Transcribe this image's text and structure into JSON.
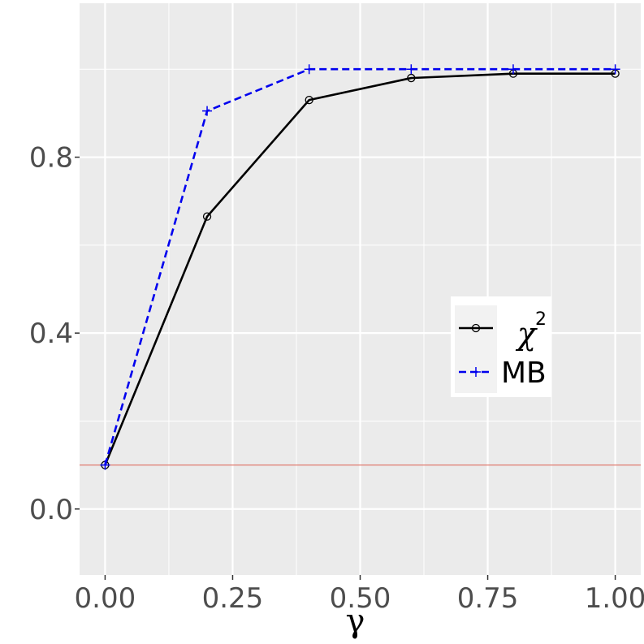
{
  "chart_data": {
    "type": "line",
    "title": "",
    "xlabel": "γ",
    "ylabel": "",
    "xlim": [
      -0.05,
      1.05
    ],
    "ylim": [
      -0.15,
      1.15
    ],
    "x_ticks": [
      0.0,
      0.25,
      0.5,
      0.75,
      1.0
    ],
    "x_tick_labels": [
      "0.00",
      "0.25",
      "0.50",
      "0.75",
      "1.00"
    ],
    "y_ticks": [
      0.0,
      0.4,
      0.8
    ],
    "y_tick_labels": [
      "0.0",
      "0.4",
      "0.8"
    ],
    "grid": true,
    "legend_position": "right",
    "reference_line": {
      "y": 0.1,
      "color": "#e07b6e"
    },
    "series": [
      {
        "name": "χ",
        "name_superscript": "2",
        "color": "#000000",
        "linestyle": "solid",
        "marker": "circle",
        "x": [
          0.0,
          0.2,
          0.4,
          0.6,
          0.8,
          1.0
        ],
        "y": [
          0.1,
          0.665,
          0.93,
          0.98,
          0.99,
          0.99
        ]
      },
      {
        "name": "MB",
        "color": "#0000ee",
        "linestyle": "dashed",
        "marker": "plus",
        "x": [
          0.0,
          0.2,
          0.4,
          0.6,
          0.8,
          1.0
        ],
        "y": [
          0.1,
          0.905,
          1.0,
          1.0,
          1.0,
          1.0
        ]
      }
    ]
  }
}
